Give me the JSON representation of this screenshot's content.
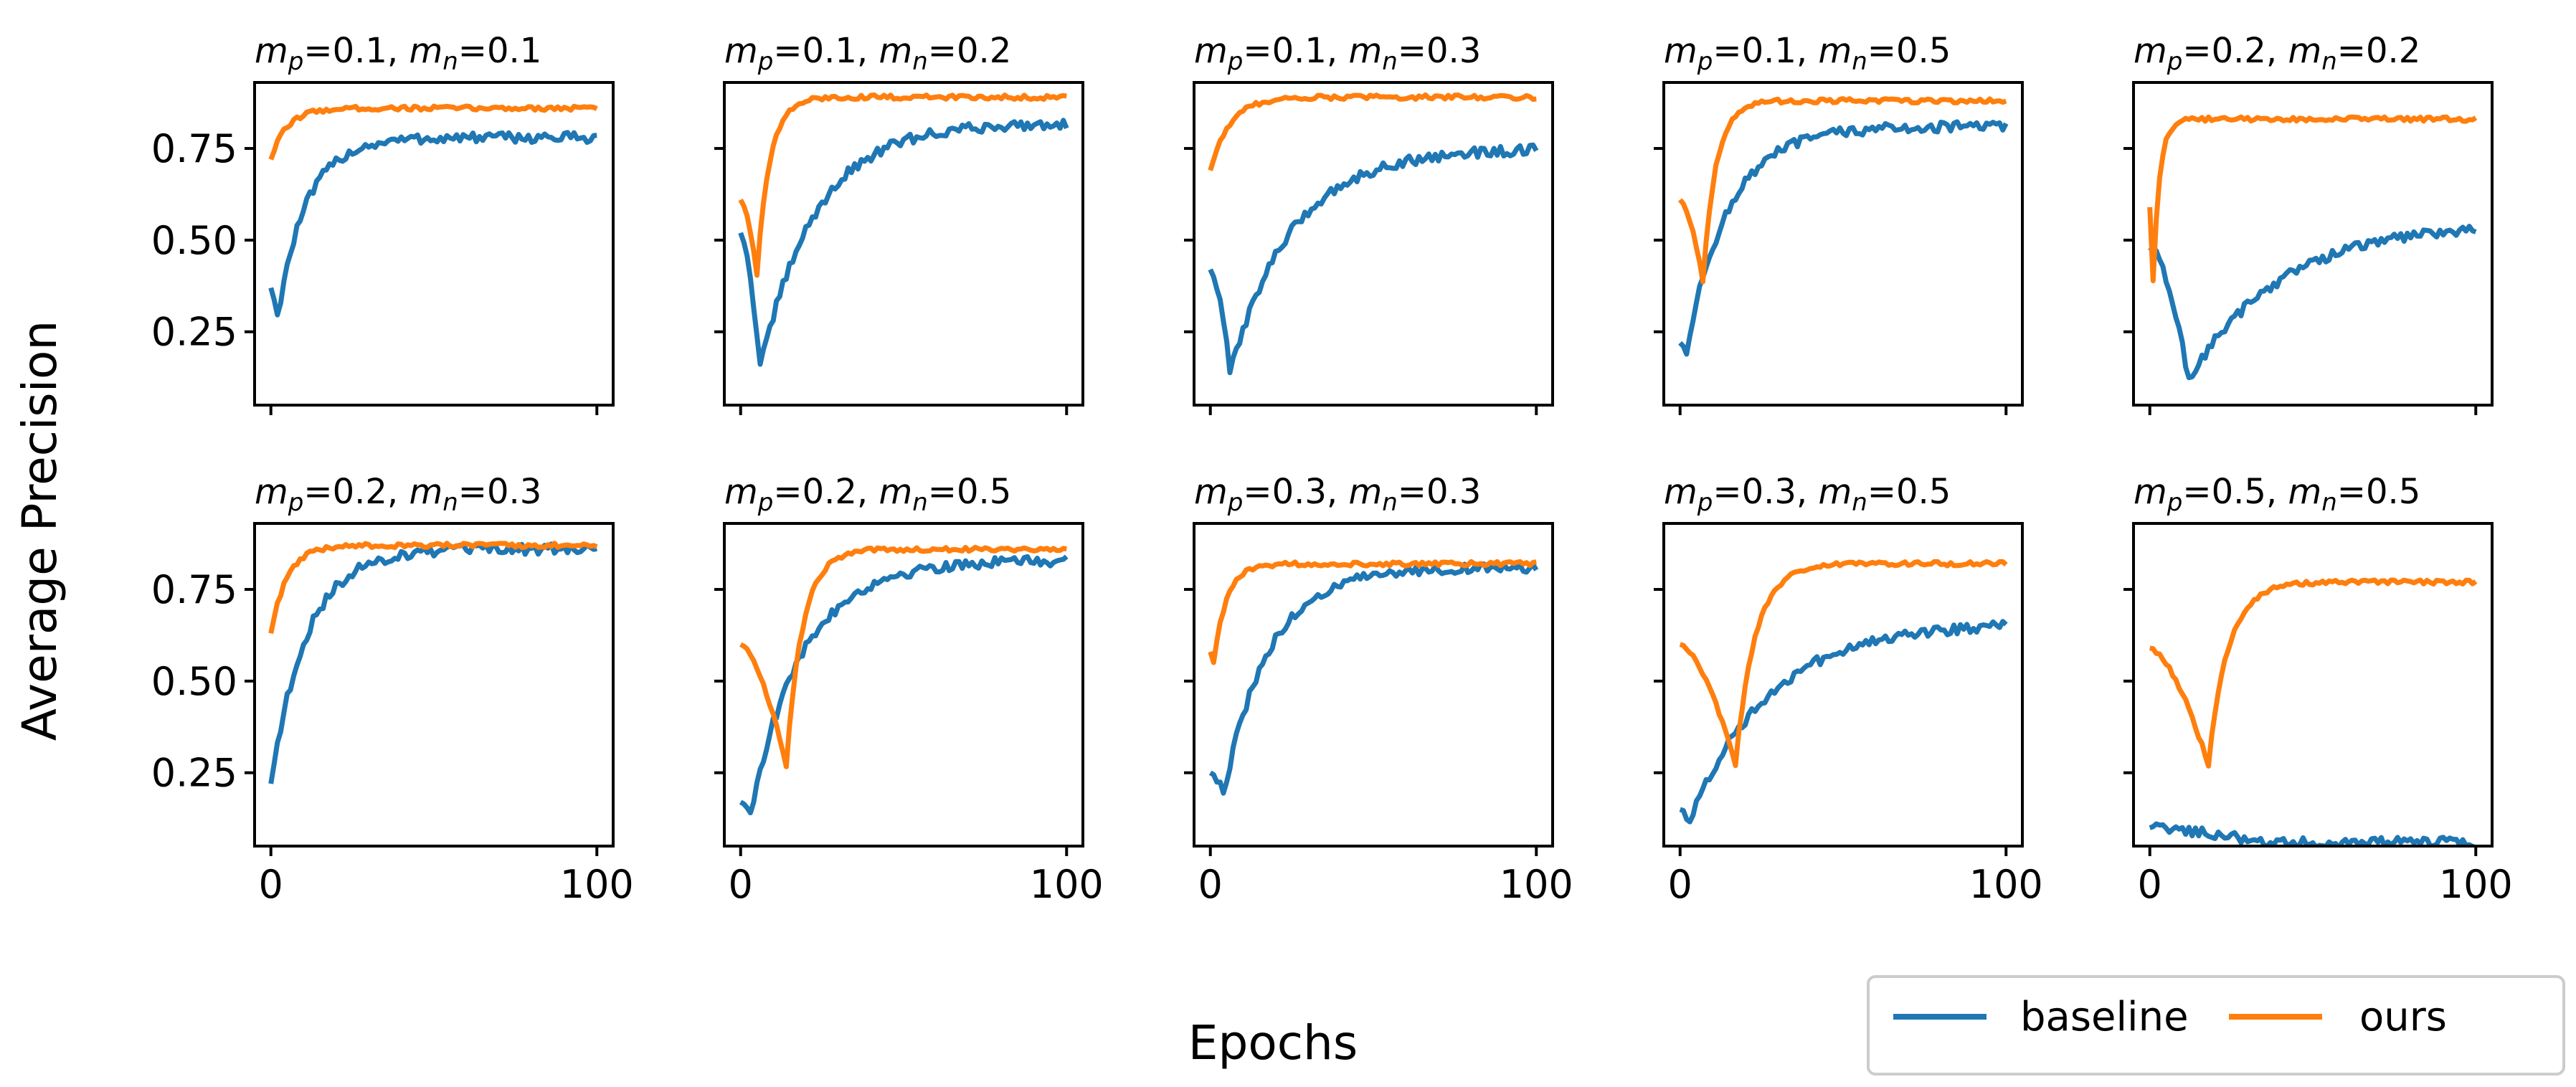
{
  "chart_data": {
    "type": "line",
    "title": "",
    "ylabel": "Average Precision",
    "xlabel": "Epochs",
    "ylim": [
      0.05,
      0.93
    ],
    "xlim": [
      -5,
      105
    ],
    "yticks": [
      0.25,
      0.5,
      0.75
    ],
    "ytick_labels": [
      "0.25",
      "0.50",
      "0.75"
    ],
    "xticks": [
      0,
      100
    ],
    "xtick_labels": [
      "0",
      "100"
    ],
    "colors": {
      "baseline": "#1f77b4",
      "ours": "#ff7f0e"
    },
    "legend": {
      "position": "bottom-right",
      "entries": [
        "baseline",
        "ours"
      ]
    },
    "panels": [
      {
        "mp": "0.1",
        "mn": "0.1",
        "title": "m_p=0.1, m_n=0.1",
        "series": [
          {
            "name": "baseline",
            "start": 0.37,
            "min": 0.29,
            "min_epoch": 2,
            "final": 0.78,
            "tau": 9
          },
          {
            "name": "ours",
            "start": 0.72,
            "min": 0.72,
            "min_epoch": 0,
            "final": 0.86,
            "tau": 5
          }
        ]
      },
      {
        "mp": "0.1",
        "mn": "0.2",
        "title": "m_p=0.1, m_n=0.2",
        "series": [
          {
            "name": "baseline",
            "start": 0.52,
            "min": 0.15,
            "min_epoch": 6,
            "final": 0.82,
            "tau": 17
          },
          {
            "name": "ours",
            "start": 0.61,
            "min": 0.41,
            "min_epoch": 5,
            "final": 0.89,
            "tau": 4
          }
        ]
      },
      {
        "mp": "0.1",
        "mn": "0.3",
        "title": "m_p=0.1, m_n=0.3",
        "series": [
          {
            "name": "baseline",
            "start": 0.42,
            "min": 0.14,
            "min_epoch": 6,
            "final": 0.75,
            "tau": 19
          },
          {
            "name": "ours",
            "start": 0.69,
            "min": 0.69,
            "min_epoch": 0,
            "final": 0.89,
            "tau": 6
          }
        ]
      },
      {
        "mp": "0.1",
        "mn": "0.5",
        "title": "m_p=0.1, m_n=0.5",
        "series": [
          {
            "name": "baseline",
            "start": 0.22,
            "min": 0.2,
            "min_epoch": 2,
            "final": 0.81,
            "tau": 13
          },
          {
            "name": "ours",
            "start": 0.61,
            "min": 0.39,
            "min_epoch": 7,
            "final": 0.88,
            "tau": 4
          }
        ]
      },
      {
        "mp": "0.2",
        "mn": "0.2",
        "title": "m_p=0.2, m_n=0.2",
        "series": [
          {
            "name": "baseline",
            "start": 0.48,
            "min": 0.12,
            "min_epoch": 12,
            "final": 0.55,
            "tau": 28
          },
          {
            "name": "ours",
            "start": 0.59,
            "min": 0.39,
            "min_epoch": 1,
            "final": 0.83,
            "tau": 2
          }
        ]
      },
      {
        "mp": "0.2",
        "mn": "0.3",
        "title": "m_p=0.2, m_n=0.3",
        "series": [
          {
            "name": "baseline",
            "start": 0.22,
            "min": 0.22,
            "min_epoch": 0,
            "final": 0.86,
            "tau": 11
          },
          {
            "name": "ours",
            "start": 0.63,
            "min": 0.63,
            "min_epoch": 0,
            "final": 0.87,
            "tau": 5
          }
        ]
      },
      {
        "mp": "0.2",
        "mn": "0.5",
        "title": "m_p=0.2, m_n=0.5",
        "series": [
          {
            "name": "baseline",
            "start": 0.17,
            "min": 0.14,
            "min_epoch": 3,
            "final": 0.83,
            "tau": 16
          },
          {
            "name": "ours",
            "start": 0.6,
            "min": 0.27,
            "min_epoch": 14,
            "final": 0.86,
            "tau": 5
          }
        ]
      },
      {
        "mp": "0.3",
        "mn": "0.3",
        "title": "m_p=0.3, m_n=0.3",
        "series": [
          {
            "name": "baseline",
            "start": 0.25,
            "min": 0.19,
            "min_epoch": 4,
            "final": 0.81,
            "tau": 14
          },
          {
            "name": "ours",
            "start": 0.58,
            "min": 0.55,
            "min_epoch": 1,
            "final": 0.82,
            "tau": 4
          }
        ]
      },
      {
        "mp": "0.3",
        "mn": "0.5",
        "title": "m_p=0.3, m_n=0.5",
        "series": [
          {
            "name": "baseline",
            "start": 0.15,
            "min": 0.12,
            "min_epoch": 3,
            "final": 0.66,
            "tau": 24
          },
          {
            "name": "ours",
            "start": 0.6,
            "min": 0.27,
            "min_epoch": 17,
            "final": 0.82,
            "tau": 6
          }
        ]
      },
      {
        "mp": "0.5",
        "mn": "0.5",
        "title": "m_p=0.5, m_n=0.5",
        "series": [
          {
            "name": "baseline",
            "start": 0.1,
            "min": 0.06,
            "min_epoch": 35,
            "final": 0.06,
            "tau": 15
          },
          {
            "name": "ours",
            "start": 0.59,
            "min": 0.27,
            "min_epoch": 18,
            "final": 0.77,
            "tau": 6
          }
        ]
      }
    ]
  }
}
